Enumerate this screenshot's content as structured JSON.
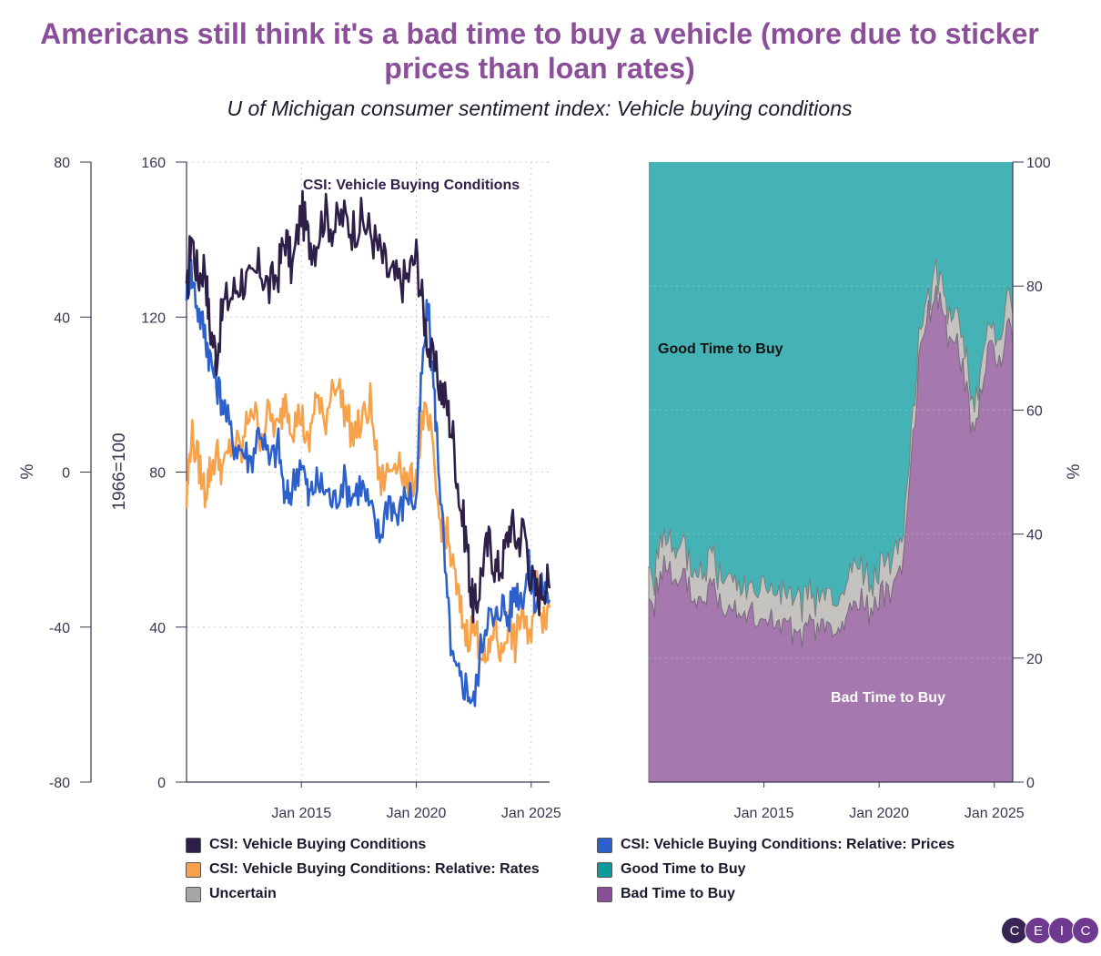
{
  "title": "Americans still think it's a bad time to buy a vehicle (more due to sticker prices than loan rates)",
  "subtitle": "U of Michigan consumer sentiment index: Vehicle buying conditions",
  "colors": {
    "csi": "#2d1f47",
    "prices": "#2c60cc",
    "rates": "#f7a24a",
    "good": "#45b3b5",
    "uncertain": "#c5c3c0",
    "bad": "#a679ae",
    "grid": "#cccccc",
    "title": "#8b4f9a"
  },
  "logo": {
    "letters": [
      "C",
      "E",
      "I",
      "C"
    ]
  },
  "chart_data": [
    {
      "type": "line",
      "panel": "left",
      "annotation": "CSI: Vehicle Buying Conditions",
      "x_ticks": [
        "Jan 2015",
        "Jan 2020",
        "Jan 2025"
      ],
      "x_range": [
        "2010-01",
        "2025-09"
      ],
      "left_axis": {
        "label": "%",
        "ticks": [
          80,
          40,
          0,
          -40,
          -80
        ],
        "ylim": [
          -80,
          80
        ]
      },
      "right_axis": {
        "label": "1966=100",
        "ticks": [
          160,
          120,
          80,
          40,
          0
        ],
        "ylim": [
          0,
          160
        ]
      },
      "grid": true,
      "series": [
        {
          "name": "CSI: Vehicle Buying Conditions",
          "axis": "index",
          "x": [
            2010.0,
            2010.2,
            2010.5,
            2010.8,
            2011.0,
            2011.3,
            2011.6,
            2012.0,
            2012.4,
            2012.8,
            2013.2,
            2013.6,
            2014.0,
            2014.3,
            2014.6,
            2015.0,
            2015.3,
            2015.6,
            2016.0,
            2016.4,
            2016.8,
            2017.2,
            2017.6,
            2018.0,
            2018.4,
            2018.8,
            2019.2,
            2019.6,
            2020.0,
            2020.3,
            2020.6,
            2021.0,
            2021.3,
            2021.6,
            2021.9,
            2022.2,
            2022.4,
            2022.6,
            2022.9,
            2023.2,
            2023.5,
            2023.8,
            2024.1,
            2024.4,
            2024.7,
            2025.0,
            2025.3,
            2025.6,
            2025.8
          ],
          "values": [
            124,
            142,
            130,
            134,
            118,
            110,
            123,
            126,
            130,
            128,
            133,
            127,
            132,
            141,
            132,
            148,
            140,
            139,
            147,
            143,
            146,
            143,
            145,
            142,
            137,
            131,
            129,
            130,
            136,
            122,
            110,
            103,
            98,
            89,
            72,
            62,
            47,
            45,
            57,
            62,
            54,
            58,
            67,
            62,
            66,
            52,
            48,
            52,
            50
          ]
        },
        {
          "name": "CSI: Vehicle Buying Conditions: Relative: Prices",
          "axis": "pct",
          "x": [
            2010.0,
            2010.2,
            2010.5,
            2010.8,
            2011.0,
            2011.3,
            2011.6,
            2012.0,
            2012.4,
            2012.8,
            2013.2,
            2013.6,
            2014.0,
            2014.3,
            2014.6,
            2015.0,
            2015.3,
            2015.6,
            2016.0,
            2016.4,
            2016.8,
            2017.2,
            2017.6,
            2018.0,
            2018.4,
            2018.8,
            2019.2,
            2019.6,
            2020.0,
            2020.2,
            2020.5,
            2020.8,
            2021.0,
            2021.3,
            2021.6,
            2021.9,
            2022.2,
            2022.5,
            2022.8,
            2023.1,
            2023.4,
            2023.7,
            2024.0,
            2024.3,
            2024.6,
            2024.9,
            2025.2,
            2025.5,
            2025.8
          ],
          "values": [
            48,
            52,
            42,
            36,
            30,
            23,
            18,
            8,
            6,
            3,
            12,
            2,
            7,
            -8,
            -4,
            4,
            -7,
            -3,
            -4,
            -8,
            -2,
            -6,
            -3,
            -10,
            -17,
            -6,
            -12,
            -5,
            -8,
            22,
            43,
            18,
            0,
            -30,
            -50,
            -54,
            -55,
            -60,
            -46,
            -36,
            -40,
            -33,
            -38,
            -30,
            -32,
            -25,
            -33,
            -30,
            -33
          ]
        },
        {
          "name": "CSI: Vehicle Buying Conditions: Relative: Rates",
          "axis": "pct",
          "x": [
            2010.0,
            2010.2,
            2010.5,
            2010.8,
            2011.0,
            2011.3,
            2011.6,
            2012.0,
            2012.4,
            2012.8,
            2013.2,
            2013.6,
            2014.0,
            2014.3,
            2014.6,
            2015.0,
            2015.3,
            2015.6,
            2016.0,
            2016.4,
            2016.8,
            2017.2,
            2017.6,
            2018.0,
            2018.4,
            2018.8,
            2019.2,
            2019.6,
            2020.0,
            2020.3,
            2020.6,
            2021.0,
            2021.3,
            2021.6,
            2021.9,
            2022.2,
            2022.5,
            2022.8,
            2023.1,
            2023.4,
            2023.7,
            2024.0,
            2024.3,
            2024.6,
            2024.9,
            2025.2,
            2025.5,
            2025.8
          ],
          "values": [
            -8,
            10,
            3,
            -5,
            0,
            5,
            0,
            8,
            5,
            18,
            10,
            15,
            10,
            20,
            12,
            15,
            5,
            20,
            12,
            25,
            18,
            10,
            12,
            18,
            -3,
            0,
            5,
            -5,
            0,
            15,
            10,
            -12,
            -15,
            -25,
            -35,
            -42,
            -40,
            -45,
            -50,
            -38,
            -48,
            -38,
            -45,
            -35,
            -45,
            -28,
            -37,
            -35
          ]
        }
      ]
    },
    {
      "type": "area",
      "panel": "right",
      "stacked": true,
      "x_ticks": [
        "Jan 2015",
        "Jan 2020",
        "Jan 2025"
      ],
      "x_range": [
        "2010-01",
        "2025-09"
      ],
      "right_axis": {
        "label": "%",
        "ticks": [
          100,
          80,
          60,
          40,
          20,
          0
        ],
        "ylim": [
          0,
          100
        ]
      },
      "annotations": [
        "Good Time to Buy",
        "Bad Time to Buy"
      ],
      "series": [
        {
          "name": "Bad Time to Buy",
          "x": [
            2010.0,
            2010.2,
            2010.5,
            2010.8,
            2011.0,
            2011.3,
            2011.6,
            2012.0,
            2012.4,
            2012.8,
            2013.2,
            2013.6,
            2014.0,
            2014.3,
            2014.6,
            2015.0,
            2015.3,
            2015.6,
            2016.0,
            2016.4,
            2016.8,
            2017.2,
            2017.6,
            2018.0,
            2018.4,
            2018.8,
            2019.2,
            2019.6,
            2020.0,
            2020.3,
            2020.6,
            2021.0,
            2021.3,
            2021.6,
            2021.9,
            2022.2,
            2022.5,
            2022.8,
            2023.1,
            2023.4,
            2023.7,
            2024.0,
            2024.3,
            2024.6,
            2024.9,
            2025.2,
            2025.5,
            2025.8
          ],
          "values": [
            30,
            28,
            34,
            36,
            32,
            31,
            33,
            29,
            30,
            32,
            28,
            30,
            27,
            28,
            26,
            25,
            28,
            24,
            26,
            22,
            25,
            24,
            26,
            23,
            25,
            28,
            30,
            27,
            29,
            31,
            31,
            36,
            45,
            62,
            73,
            76,
            79,
            74,
            70,
            72,
            65,
            57,
            60,
            68,
            71,
            66,
            73,
            72
          ]
        },
        {
          "name": "Uncertain",
          "x": [
            2010.0,
            2010.5,
            2011.0,
            2011.5,
            2012.0,
            2012.5,
            2013.0,
            2013.5,
            2014.0,
            2014.5,
            2015.0,
            2015.5,
            2016.0,
            2016.5,
            2017.0,
            2017.5,
            2018.0,
            2018.5,
            2019.0,
            2019.5,
            2020.0,
            2020.5,
            2021.0,
            2021.5,
            2022.0,
            2022.5,
            2023.0,
            2023.5,
            2024.0,
            2024.5,
            2025.0,
            2025.5,
            2025.8
          ],
          "values": [
            4,
            5,
            4,
            5,
            4,
            5,
            4,
            5,
            5,
            4,
            6,
            5,
            5,
            6,
            5,
            4,
            5,
            5,
            6,
            4,
            5,
            5,
            4,
            4,
            3,
            4,
            4,
            5,
            4,
            4,
            3,
            4,
            4
          ]
        },
        {
          "name": "Good Time to Buy",
          "x": [
            2010.0,
            2010.5,
            2011.0,
            2011.5,
            2012.0,
            2012.5,
            2013.0,
            2013.5,
            2014.0,
            2014.5,
            2015.0,
            2015.5,
            2016.0,
            2016.5,
            2017.0,
            2017.5,
            2018.0,
            2018.5,
            2019.0,
            2019.5,
            2020.0,
            2020.5,
            2021.0,
            2021.5,
            2022.0,
            2022.5,
            2023.0,
            2023.5,
            2024.0,
            2024.5,
            2025.0,
            2025.5,
            2025.8
          ],
          "values": [
            66,
            62,
            64,
            62,
            66,
            64,
            67,
            66,
            68,
            70,
            69,
            70,
            70,
            73,
            70,
            71,
            71,
            70,
            64,
            67,
            66,
            64,
            60,
            40,
            22,
            17,
            24,
            30,
            34,
            28,
            29,
            24,
            24
          ]
        }
      ]
    }
  ],
  "legend": [
    {
      "label": "CSI: Vehicle Buying Conditions",
      "color": "#2d1f47"
    },
    {
      "label": "CSI: Vehicle Buying Conditions: Relative: Prices",
      "color": "#2c60cc"
    },
    {
      "label": "CSI: Vehicle Buying Conditions: Relative: Rates",
      "color": "#f7a24a"
    },
    {
      "label": "Good Time to Buy",
      "color": "#0d9a9c"
    },
    {
      "label": "Uncertain",
      "color": "#a8a6a4"
    },
    {
      "label": "Bad Time to Buy",
      "color": "#8b4f9a"
    }
  ]
}
